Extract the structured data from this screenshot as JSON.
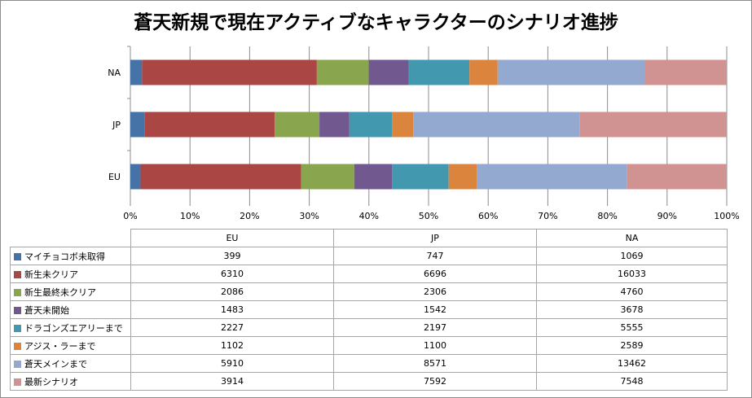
{
  "chart_data": {
    "type": "bar",
    "orientation": "horizontal",
    "stacked": "percent",
    "title": "蒼天新規で現在アクティブなキャラクターのシナリオ進捗",
    "categories": [
      "EU",
      "JP",
      "NA"
    ],
    "xlim": [
      0,
      100
    ],
    "xticks": [
      "0%",
      "10%",
      "20%",
      "30%",
      "40%",
      "50%",
      "60%",
      "70%",
      "80%",
      "90%",
      "100%"
    ],
    "grid": true,
    "series": [
      {
        "name": "マイチョコボ未取得",
        "color": "#4572a7",
        "values": [
          399,
          747,
          1069
        ]
      },
      {
        "name": "新生未クリア",
        "color": "#aa4643",
        "values": [
          6310,
          6696,
          16033
        ]
      },
      {
        "name": "新生最終未クリア",
        "color": "#89a54e",
        "values": [
          2086,
          2306,
          4760
        ]
      },
      {
        "name": "蒼天未開始",
        "color": "#71588f",
        "values": [
          1483,
          1542,
          3678
        ]
      },
      {
        "name": "ドラゴンズエアリーまで",
        "color": "#4198af",
        "values": [
          2227,
          2197,
          5555
        ]
      },
      {
        "name": "アジス・ラーまで",
        "color": "#db843d",
        "values": [
          1102,
          1100,
          2589
        ]
      },
      {
        "name": "蒼天メインまで",
        "color": "#93a9cf",
        "values": [
          5910,
          8571,
          13462
        ]
      },
      {
        "name": "最新シナリオ",
        "color": "#d19392",
        "values": [
          3914,
          7592,
          7548
        ]
      }
    ]
  }
}
